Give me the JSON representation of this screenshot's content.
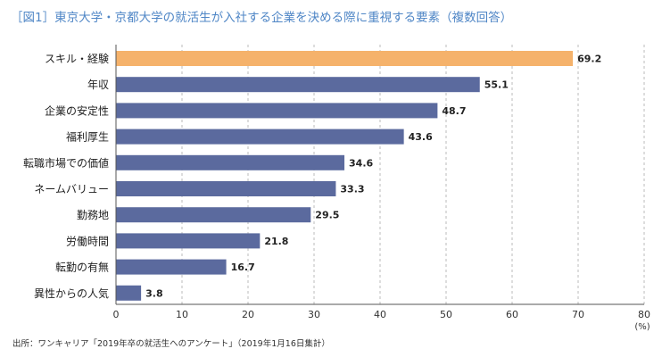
{
  "title": "［図1］東京大学・京都大学の就活生が入社する企業を決める際に重視する要素（複数回答）",
  "source": "出所：ワンキャリア「2019年卒の就活生へのアンケート」（2019年1月16日集計）",
  "chart_data": {
    "type": "bar",
    "orientation": "horizontal",
    "categories": [
      "スキル・経験",
      "年収",
      "企業の安定性",
      "福利厚生",
      "転職市場での価値",
      "ネームバリュー",
      "勤務地",
      "労働時間",
      "転勤の有無",
      "異性からの人気"
    ],
    "values": [
      69.2,
      55.1,
      48.7,
      43.6,
      34.6,
      33.3,
      29.5,
      21.8,
      16.7,
      3.8
    ],
    "value_labels": [
      "69.2",
      "55.1",
      "48.7",
      "43.6",
      "34.6",
      "33.3",
      "29.5",
      "21.8",
      "16.7",
      "3.8"
    ],
    "xlim": [
      0,
      80
    ],
    "x_ticks": [
      "0",
      "10",
      "20",
      "30",
      "40",
      "50",
      "60",
      "70",
      "80"
    ],
    "unit_label": "(%)",
    "grid": "vertical dashed",
    "colors": {
      "highlight": "#f5b26b",
      "default": "#5b6a9e",
      "grid": "#bbbbbb",
      "axis": "#555555"
    },
    "highlight_index": 0
  }
}
